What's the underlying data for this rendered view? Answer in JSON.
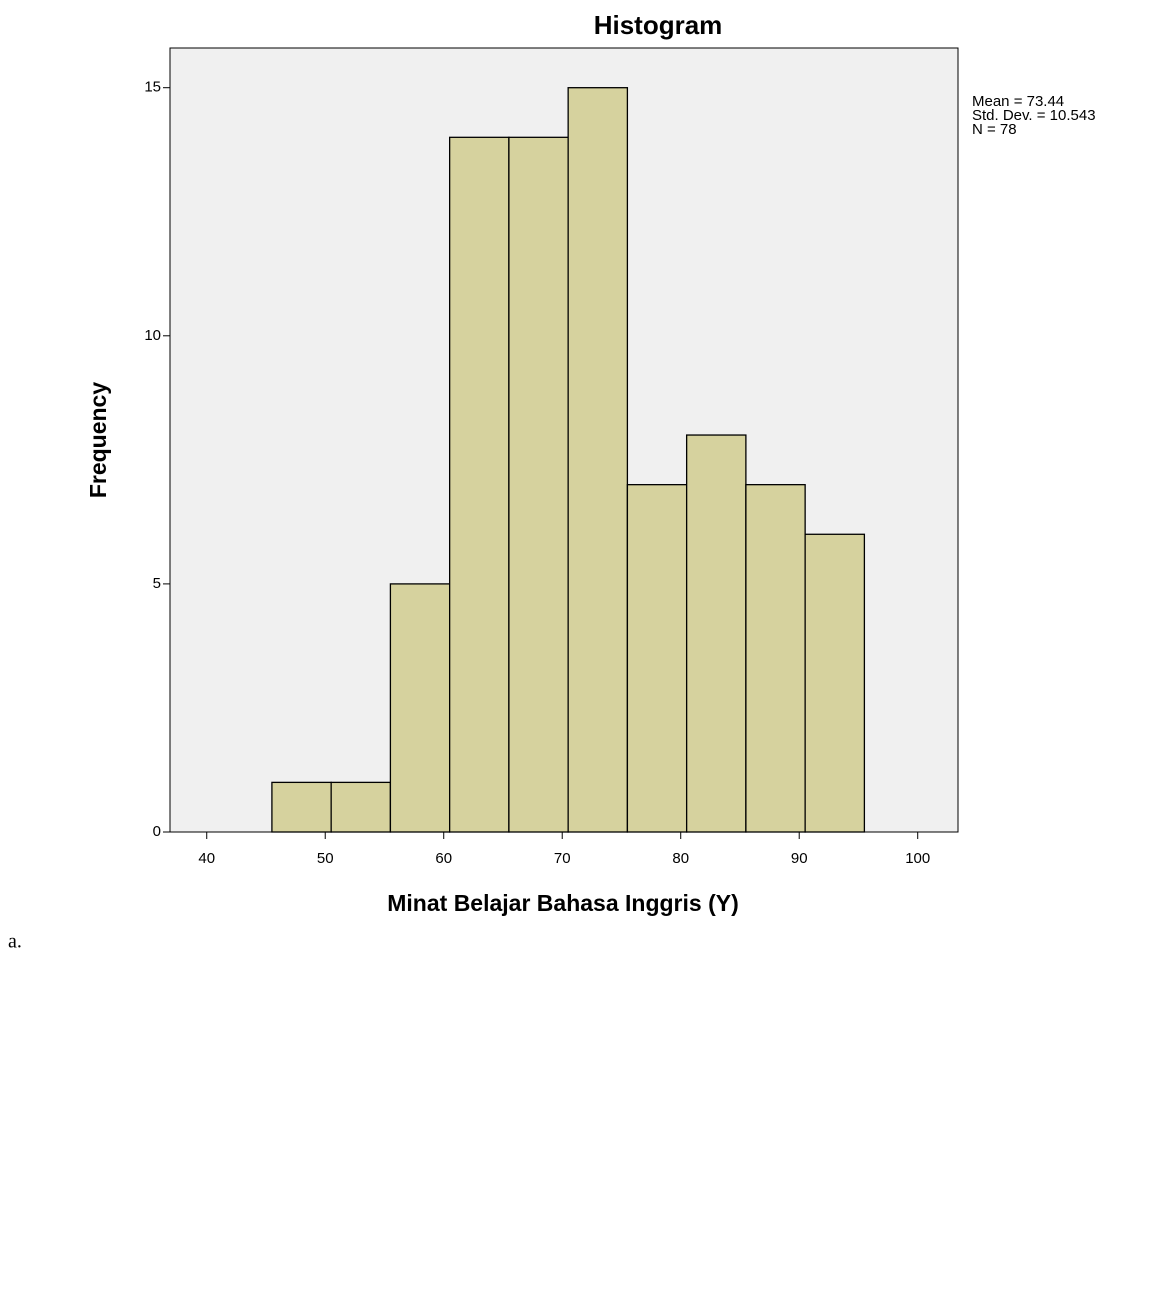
{
  "chart_data": {
    "type": "histogram",
    "title": "Histogram",
    "x_label": "Minat Belajar Bahasa Inggris (Y)",
    "y_label": "Frequency",
    "bins": [
      45.5,
      50.5,
      55.5,
      60.5,
      65.5,
      70.5,
      75.5,
      80.5,
      85.5,
      90.5,
      95.5
    ],
    "values": [
      1,
      1,
      5,
      14,
      14,
      15,
      7,
      8,
      7,
      6
    ],
    "color": "#d6d29e",
    "xlim": [
      36.9,
      103.4
    ],
    "xticks": [
      40,
      50,
      60,
      70,
      80,
      90,
      100
    ],
    "ylim": [
      0,
      15.8
    ],
    "yticks": [
      0,
      5,
      10,
      15
    ],
    "stats": [
      "Mean = 73.44",
      "Std. Dev. = 10.543",
      "N = 78"
    ],
    "item_marker": "a."
  }
}
